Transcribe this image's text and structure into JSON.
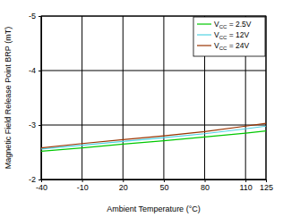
{
  "chart_data": {
    "type": "line",
    "x_label": "Ambient Temperature (°C)",
    "y_label": "Magnetic Field Release Point BRP (mT)",
    "x": [
      -40,
      -10,
      20,
      50,
      80,
      110,
      125
    ],
    "series": [
      {
        "name": "VCC = 2.5V",
        "color": "#00c800",
        "values": [
          -2.52,
          -2.58,
          -2.65,
          -2.71,
          -2.78,
          -2.85,
          -2.89
        ]
      },
      {
        "name": "VCC = 12V",
        "color": "#4fd2e2",
        "values": [
          -2.56,
          -2.63,
          -2.7,
          -2.77,
          -2.84,
          -2.93,
          -2.98
        ]
      },
      {
        "name": "VCC = 24V",
        "color": "#993300",
        "values": [
          -2.58,
          -2.66,
          -2.73,
          -2.8,
          -2.88,
          -2.98,
          -3.03
        ]
      }
    ],
    "xlim": [
      -40,
      125
    ],
    "xticks": [
      -40,
      -10,
      20,
      50,
      80,
      110,
      125
    ],
    "ylim": [
      -2,
      -5
    ],
    "yticks": [
      -2,
      -3,
      -4,
      -5
    ],
    "grid": true,
    "legend": "upper right"
  }
}
